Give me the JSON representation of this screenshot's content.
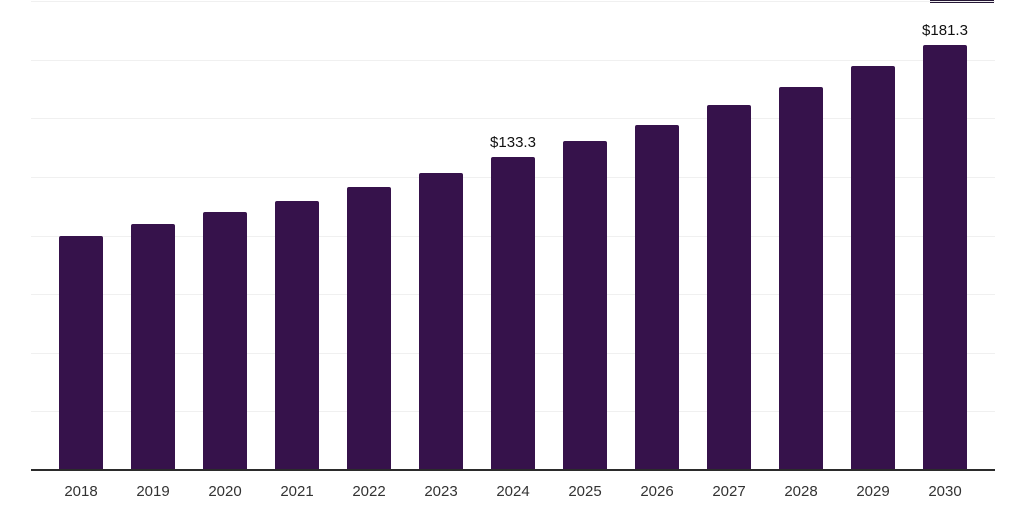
{
  "chart_data": {
    "type": "bar",
    "title": "",
    "xlabel": "",
    "ylabel": "",
    "categories": [
      "2018",
      "2019",
      "2020",
      "2021",
      "2022",
      "2023",
      "2024",
      "2025",
      "2026",
      "2027",
      "2028",
      "2029",
      "2030"
    ],
    "values": [
      99.8,
      104.9,
      110.1,
      114.9,
      120.6,
      126.8,
      133.3,
      140.2,
      147.3,
      155.6,
      163.2,
      172.2,
      181.3
    ],
    "bar_labels": [
      "",
      "",
      "",
      "",
      "",
      "",
      "$133.3",
      "",
      "",
      "",
      "",
      "",
      "$181.3"
    ],
    "ylim": [
      0,
      200
    ],
    "gridline_step": 25,
    "grid": "horizontal-only",
    "y_axis_labels_visible": false,
    "legend": "none",
    "colors": {
      "background": "#ffffff",
      "bar": "#36124b",
      "axis_line": "#2b2b2b",
      "gridline": "#f0f0f0",
      "tick_label": "#333333",
      "data_label": "#111111",
      "cropped_sliver": "#241635"
    }
  }
}
